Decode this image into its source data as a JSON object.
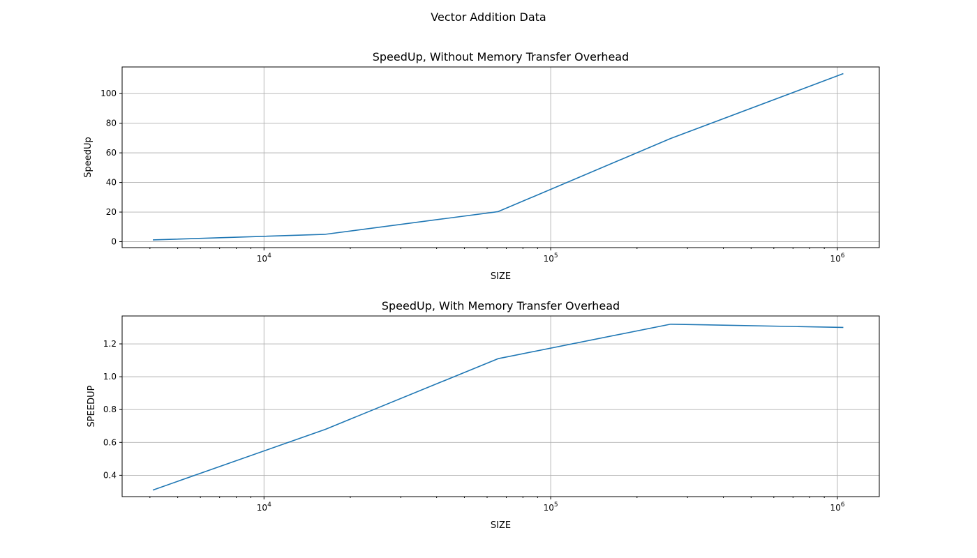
{
  "figure_title": "Vector Addition Data",
  "chart_data": [
    {
      "type": "line",
      "title": "SpeedUp, Without Memory Transfer Overhead",
      "xlabel": "SIZE",
      "ylabel": "SpeedUp",
      "xscale": "log",
      "xlim": [
        3200,
        1400000
      ],
      "ylim": [
        -4,
        118
      ],
      "grid": true,
      "x": [
        4096,
        16384,
        65536,
        262144,
        1048576
      ],
      "y": [
        1.2,
        5.0,
        20.3,
        69.7,
        113.5
      ],
      "x_major_ticks": [
        10000,
        100000,
        1000000
      ],
      "x_tick_labels": [
        {
          "base": "10",
          "exp": "4"
        },
        {
          "base": "10",
          "exp": "5"
        },
        {
          "base": "10",
          "exp": "6"
        }
      ],
      "y_ticks": [
        0,
        20,
        40,
        60,
        80,
        100
      ],
      "y_tick_labels": [
        "0",
        "20",
        "40",
        "60",
        "80",
        "100"
      ],
      "color": "#1f77b4"
    },
    {
      "type": "line",
      "title": "SpeedUp, With Memory Transfer Overhead",
      "xlabel": "SIZE",
      "ylabel": "SPEEDUP",
      "xscale": "log",
      "xlim": [
        3200,
        1400000
      ],
      "ylim": [
        0.27,
        1.37
      ],
      "grid": true,
      "x": [
        4096,
        16384,
        65536,
        262144,
        1048576
      ],
      "y": [
        0.31,
        0.68,
        1.11,
        1.32,
        1.3
      ],
      "x_major_ticks": [
        10000,
        100000,
        1000000
      ],
      "x_tick_labels": [
        {
          "base": "10",
          "exp": "4"
        },
        {
          "base": "10",
          "exp": "5"
        },
        {
          "base": "10",
          "exp": "6"
        }
      ],
      "y_ticks": [
        0.4,
        0.6,
        0.8,
        1.0,
        1.2
      ],
      "y_tick_labels": [
        "0.4",
        "0.6",
        "0.8",
        "1.0",
        "1.2"
      ],
      "color": "#1f77b4"
    }
  ]
}
